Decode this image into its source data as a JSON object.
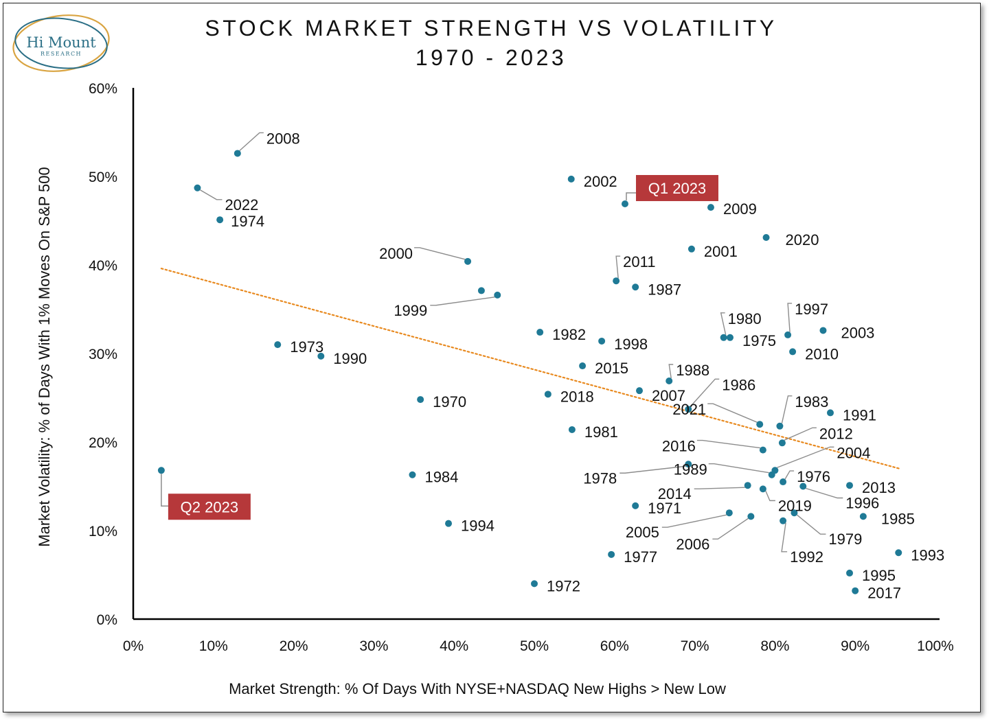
{
  "logo": {
    "name": "Hi Mount",
    "subtitle": "RESEARCH",
    "ring_color": "#d9a441",
    "ring_color_2": "#2b6f86",
    "text_color": "#2b6f86"
  },
  "colors": {
    "point": "#1f7a96",
    "trend": "#e8891e",
    "leader": "#8c8c8c",
    "highlight_bg": "#b6383a",
    "highlight_text": "#ffffff",
    "axis": "#000000",
    "text": "#111111"
  },
  "chart_data": {
    "type": "scatter",
    "title": "STOCK MARKET STRENGTH VS VOLATILITY",
    "subtitle": "1970 - 2023",
    "xlabel": "Market Strength: % Of Days With NYSE+NASDAQ New Highs > New Low",
    "ylabel": "Market Volatility: % of Days With 1% Moves On S&P 500",
    "xlim": [
      0,
      100
    ],
    "ylim": [
      0,
      60
    ],
    "x_ticks": [
      "0%",
      "10%",
      "20%",
      "30%",
      "40%",
      "50%",
      "60%",
      "70%",
      "80%",
      "90%",
      "100%"
    ],
    "y_ticks": [
      "0%",
      "10%",
      "20%",
      "30%",
      "40%",
      "50%",
      "60%"
    ],
    "grid": false,
    "trendline": {
      "style": "dotted",
      "x": [
        3.5,
        95.5
      ],
      "y": [
        39.6,
        17.0
      ]
    },
    "points": [
      {
        "label": "2008",
        "x": 13.0,
        "y": 52.6
      },
      {
        "label": "2022",
        "x": 8.0,
        "y": 48.7
      },
      {
        "label": "1974",
        "x": 10.8,
        "y": 45.1
      },
      {
        "label": "2002",
        "x": 54.6,
        "y": 49.7
      },
      {
        "label": "Q1 2023",
        "x": 61.3,
        "y": 46.9,
        "highlight": true
      },
      {
        "label": "2009",
        "x": 72.0,
        "y": 46.5
      },
      {
        "label": "2020",
        "x": 78.9,
        "y": 43.1
      },
      {
        "label": "2001",
        "x": 69.6,
        "y": 41.8
      },
      {
        "label": "2000",
        "x": 41.7,
        "y": 40.4
      },
      {
        "label": "2011",
        "x": 60.2,
        "y": 38.2
      },
      {
        "label": "1987",
        "x": 62.6,
        "y": 37.5
      },
      {
        "label": "1999",
        "x": 45.4,
        "y": 36.6
      },
      {
        "label": "",
        "x": 43.4,
        "y": 37.1
      },
      {
        "label": "1997",
        "x": 81.6,
        "y": 32.1
      },
      {
        "label": "1980",
        "x": 73.6,
        "y": 31.8
      },
      {
        "label": "1975",
        "x": 74.4,
        "y": 31.8
      },
      {
        "label": "2003",
        "x": 86.0,
        "y": 32.6
      },
      {
        "label": "1982",
        "x": 50.7,
        "y": 32.4
      },
      {
        "label": "1998",
        "x": 58.4,
        "y": 31.4
      },
      {
        "label": "2010",
        "x": 82.2,
        "y": 30.2
      },
      {
        "label": "1973",
        "x": 18.0,
        "y": 31.0
      },
      {
        "label": "1990",
        "x": 23.4,
        "y": 29.7
      },
      {
        "label": "2015",
        "x": 56.0,
        "y": 28.6
      },
      {
        "label": "1988",
        "x": 66.8,
        "y": 26.9
      },
      {
        "label": "2007",
        "x": 63.1,
        "y": 25.8
      },
      {
        "label": "2018",
        "x": 51.7,
        "y": 25.4
      },
      {
        "label": "1986",
        "x": 69.2,
        "y": 23.7
      },
      {
        "label": "1970",
        "x": 35.8,
        "y": 24.8
      },
      {
        "label": "1983",
        "x": 80.6,
        "y": 21.8
      },
      {
        "label": "1991",
        "x": 86.9,
        "y": 23.3
      },
      {
        "label": "2021",
        "x": 78.1,
        "y": 22.0
      },
      {
        "label": "1981",
        "x": 54.7,
        "y": 21.4
      },
      {
        "label": "2012",
        "x": 80.9,
        "y": 19.9
      },
      {
        "label": "2016",
        "x": 78.5,
        "y": 19.1
      },
      {
        "label": "2004",
        "x": 80.0,
        "y": 16.8
      },
      {
        "label": "1989",
        "x": 79.6,
        "y": 16.3
      },
      {
        "label": "1976",
        "x": 81.0,
        "y": 15.5
      },
      {
        "label": "1978",
        "x": 69.2,
        "y": 17.5
      },
      {
        "label": "1984",
        "x": 34.8,
        "y": 16.3
      },
      {
        "label": "Q2 2023",
        "x": 3.5,
        "y": 16.8,
        "highlight": true
      },
      {
        "label": "2013",
        "x": 89.3,
        "y": 15.1
      },
      {
        "label": "1996",
        "x": 83.5,
        "y": 15.0
      },
      {
        "label": "2014",
        "x": 76.6,
        "y": 15.1
      },
      {
        "label": "2019",
        "x": 78.5,
        "y": 14.7
      },
      {
        "label": "1971",
        "x": 62.6,
        "y": 12.8
      },
      {
        "label": "1985",
        "x": 91.0,
        "y": 11.6
      },
      {
        "label": "2005",
        "x": 74.3,
        "y": 12.0
      },
      {
        "label": "2006",
        "x": 77.0,
        "y": 11.6
      },
      {
        "label": "1979",
        "x": 82.4,
        "y": 12.0
      },
      {
        "label": "1992",
        "x": 81.0,
        "y": 11.1
      },
      {
        "label": "1994",
        "x": 39.3,
        "y": 10.8
      },
      {
        "label": "1993",
        "x": 95.4,
        "y": 7.5
      },
      {
        "label": "1977",
        "x": 59.6,
        "y": 7.3
      },
      {
        "label": "1995",
        "x": 89.3,
        "y": 5.2
      },
      {
        "label": "1972",
        "x": 50.0,
        "y": 4.0
      },
      {
        "label": "2017",
        "x": 90.0,
        "y": 3.2
      }
    ]
  }
}
